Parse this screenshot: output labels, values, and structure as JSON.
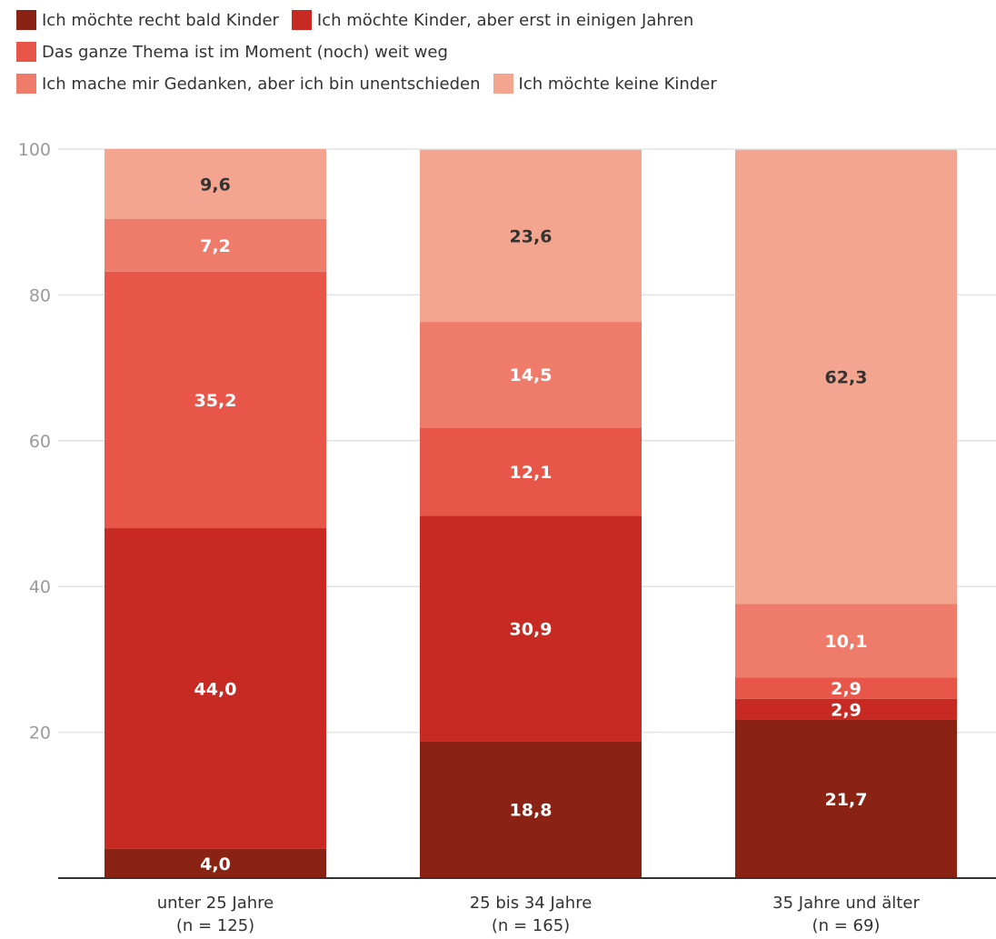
{
  "chart_data": {
    "type": "bar",
    "stacked": true,
    "categories": [
      "unter 25 Jahre",
      "25 bis 34 Jahre",
      "35 Jahre und älter"
    ],
    "category_notes": [
      "(n = 125)",
      "(n = 165)",
      "(n = 69)"
    ],
    "series": [
      {
        "name": "Ich möchte recht bald Kinder",
        "values": [
          4.0,
          18.8,
          21.7
        ],
        "labels": [
          "4,0",
          "18,8",
          "21,7"
        ],
        "color": "#8b2314",
        "label_color": "#ffffff"
      },
      {
        "name": "Ich möchte Kinder, aber erst in einigen Jahren",
        "values": [
          44.0,
          30.9,
          2.9
        ],
        "labels": [
          "44,0",
          "30,9",
          "2,9"
        ],
        "color": "#c62a22",
        "label_color": "#ffffff"
      },
      {
        "name": "Das ganze Thema ist im Moment (noch) weit weg",
        "values": [
          35.2,
          12.1,
          2.9
        ],
        "labels": [
          "35,2",
          "12,1",
          "2,9"
        ],
        "color": "#e8564a",
        "label_color": "#ffffff"
      },
      {
        "name": "Ich mache mir Gedanken, aber ich bin unentschieden",
        "values": [
          7.2,
          14.5,
          10.1
        ],
        "labels": [
          "7,2",
          "14,5",
          "10,1"
        ],
        "color": "#ef7b6b",
        "label_color": "#ffffff"
      },
      {
        "name": "Ich möchte keine Kinder",
        "values": [
          9.6,
          23.6,
          62.3
        ],
        "labels": [
          "9,6",
          "23,6",
          "62,3"
        ],
        "color": "#f4a58f",
        "label_color": "#333333"
      }
    ],
    "yticks": [
      20,
      40,
      60,
      80,
      100
    ],
    "ylim": [
      0,
      100
    ],
    "grid": true,
    "legend_position": "top-left",
    "title": "",
    "xlabel": "",
    "ylabel": ""
  }
}
